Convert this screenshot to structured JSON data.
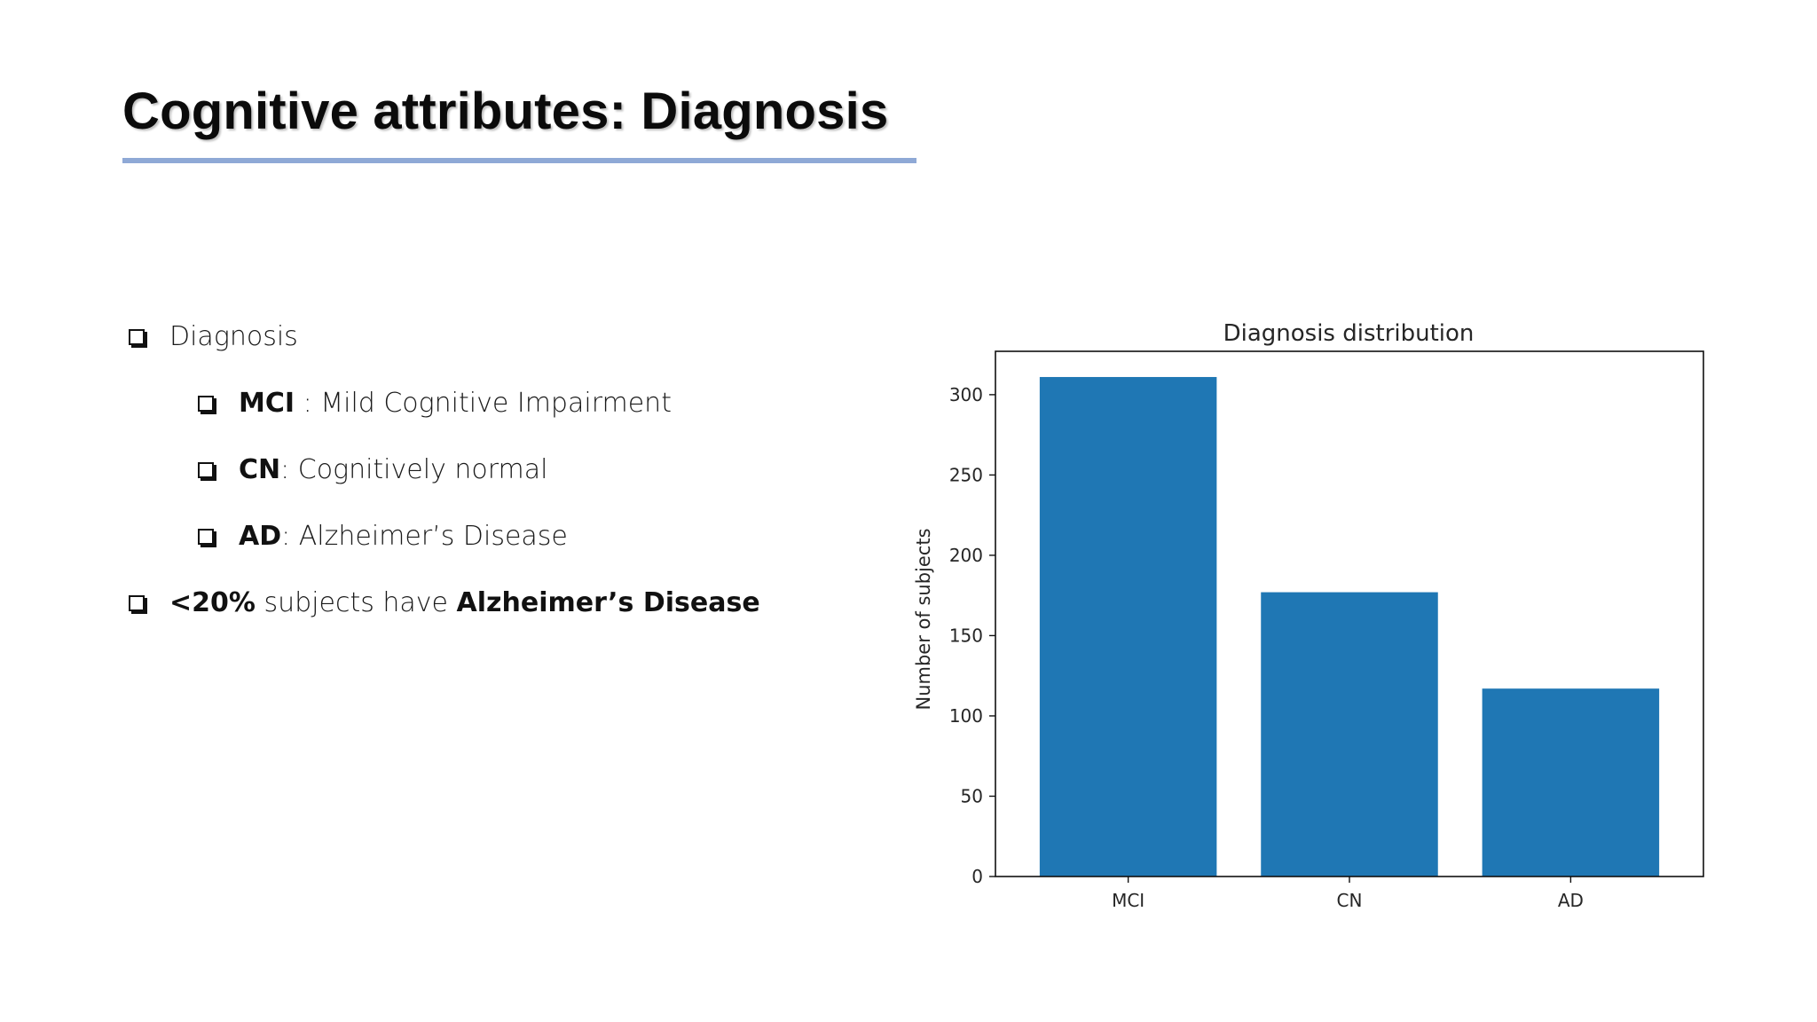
{
  "slide": {
    "title": "Cognitive attributes: Diagnosis",
    "bullets": [
      {
        "parts": [
          {
            "text": "Diagnosis",
            "bold": false
          }
        ]
      },
      {
        "parts": [
          {
            "text": "MCI",
            "bold": true
          },
          {
            "text": " : Mild Cognitive Impairment",
            "bold": false
          }
        ]
      },
      {
        "parts": [
          {
            "text": "CN",
            "bold": true
          },
          {
            "text": ": Cognitively normal",
            "bold": false
          }
        ]
      },
      {
        "parts": [
          {
            "text": "AD",
            "bold": true
          },
          {
            "text": ": Alzheimer’s Disease",
            "bold": false
          }
        ]
      },
      {
        "parts": [
          {
            "text": "<20%",
            "bold": true
          },
          {
            "text": " subjects have ",
            "bold": false
          },
          {
            "text": "Alzheimer’s Disease",
            "bold": true
          }
        ]
      }
    ]
  },
  "colors": {
    "bar": "#1f77b4",
    "underline": "#8fa9d6"
  },
  "chart_data": {
    "type": "bar",
    "title": "Diagnosis distribution",
    "xlabel": "",
    "ylabel": "Number of subjects",
    "categories": [
      "MCI",
      "CN",
      "AD"
    ],
    "values": [
      311,
      177,
      117
    ],
    "ylim": [
      0,
      327
    ],
    "yticks": [
      0,
      50,
      100,
      150,
      200,
      250,
      300
    ],
    "grid": false,
    "legend": "none"
  }
}
